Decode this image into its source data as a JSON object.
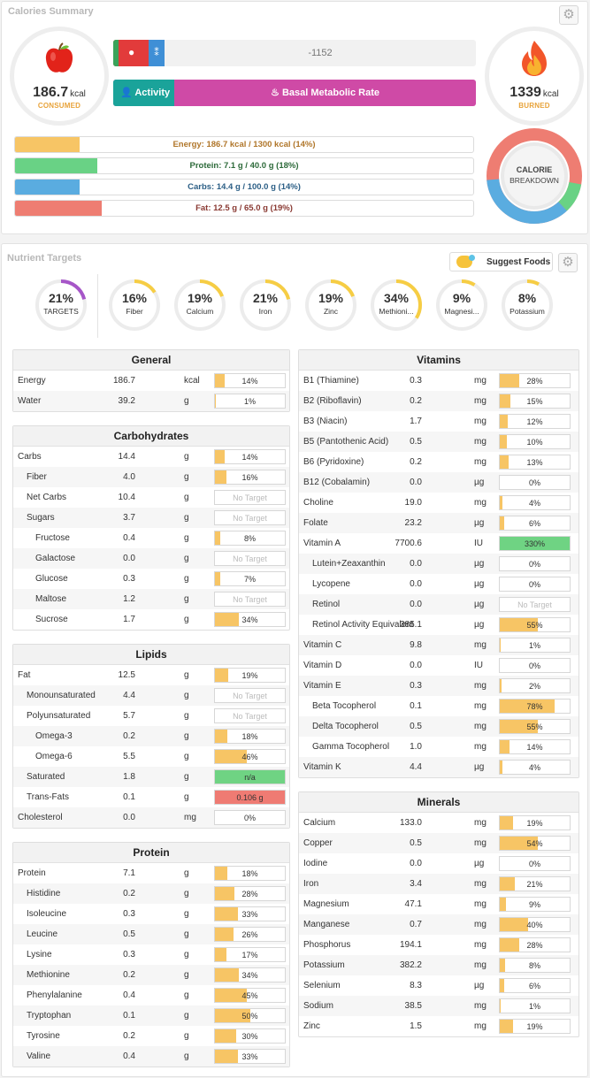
{
  "summary": {
    "title": "Calories Summary",
    "consumed": {
      "value": "186.7",
      "unit": "kcal",
      "caption": "CONSUMED"
    },
    "burned": {
      "value": "1339",
      "unit": "kcal",
      "caption": "BURNED"
    },
    "net": "-1152",
    "activity_label": "Activity",
    "bmr_label": "Basal Metabolic Rate",
    "breakdown": [
      "CALORIE",
      "BREAKDOWN"
    ],
    "macros": [
      {
        "label": "Energy: 186.7 kcal / 1300 kcal (14%)",
        "pct": 14,
        "color": "#f7c565",
        "text": "#b0762a"
      },
      {
        "label": "Protein: 7.1 g / 40.0 g (18%)",
        "pct": 18,
        "color": "#69d285",
        "text": "#2d6a3a"
      },
      {
        "label": "Carbs: 14.4 g / 100.0 g (14%)",
        "pct": 14,
        "color": "#5aace0",
        "text": "#2c5f86"
      },
      {
        "label": "Fat: 12.5 g / 65.0 g (19%)",
        "pct": 19,
        "color": "#ee7d72",
        "text": "#8a3a33"
      }
    ]
  },
  "targets": {
    "title": "Nutrient Targets",
    "suggest_label": "Suggest Foods",
    "rings": [
      {
        "pct": "21%",
        "name": "TARGETS",
        "value": 21,
        "color": "#a656c8"
      },
      {
        "pct": "16%",
        "name": "Fiber",
        "value": 16,
        "color": "#f6cd44"
      },
      {
        "pct": "19%",
        "name": "Calcium",
        "value": 19,
        "color": "#f6cd44"
      },
      {
        "pct": "21%",
        "name": "Iron",
        "value": 21,
        "color": "#f6cd44"
      },
      {
        "pct": "19%",
        "name": "Zinc",
        "value": 19,
        "color": "#f6cd44"
      },
      {
        "pct": "34%",
        "name": "Methioni...",
        "value": 34,
        "color": "#f6cd44"
      },
      {
        "pct": "9%",
        "name": "Magnesi...",
        "value": 9,
        "color": "#f6cd44"
      },
      {
        "pct": "8%",
        "name": "Potassium",
        "value": 8,
        "color": "#f6cd44"
      }
    ]
  },
  "tables": {
    "general": {
      "title": "General",
      "rows": [
        {
          "name": "Energy",
          "value": "186.7",
          "unit": "kcal",
          "pct": 14,
          "label": "14%"
        },
        {
          "name": "Water",
          "value": "39.2",
          "unit": "g",
          "pct": 1,
          "label": "1%"
        }
      ]
    },
    "carbs": {
      "title": "Carbohydrates",
      "rows": [
        {
          "name": "Carbs",
          "value": "14.4",
          "unit": "g",
          "pct": 14,
          "label": "14%",
          "indent": 0
        },
        {
          "name": "Fiber",
          "value": "4.0",
          "unit": "g",
          "pct": 16,
          "label": "16%",
          "indent": 1
        },
        {
          "name": "Net Carbs",
          "value": "10.4",
          "unit": "g",
          "pct": 0,
          "label": "No Target",
          "indent": 1,
          "nt": true
        },
        {
          "name": "Sugars",
          "value": "3.7",
          "unit": "g",
          "pct": 0,
          "label": "No Target",
          "indent": 1,
          "nt": true
        },
        {
          "name": "Fructose",
          "value": "0.4",
          "unit": "g",
          "pct": 8,
          "label": "8%",
          "indent": 2
        },
        {
          "name": "Galactose",
          "value": "0.0",
          "unit": "g",
          "pct": 0,
          "label": "No Target",
          "indent": 2,
          "nt": true
        },
        {
          "name": "Glucose",
          "value": "0.3",
          "unit": "g",
          "pct": 7,
          "label": "7%",
          "indent": 2
        },
        {
          "name": "Maltose",
          "value": "1.2",
          "unit": "g",
          "pct": 0,
          "label": "No Target",
          "indent": 2,
          "nt": true
        },
        {
          "name": "Sucrose",
          "value": "1.7",
          "unit": "g",
          "pct": 34,
          "label": "34%",
          "indent": 2
        }
      ]
    },
    "lipids": {
      "title": "Lipids",
      "rows": [
        {
          "name": "Fat",
          "value": "12.5",
          "unit": "g",
          "pct": 19,
          "label": "19%",
          "indent": 0
        },
        {
          "name": "Monounsaturated",
          "value": "4.4",
          "unit": "g",
          "pct": 0,
          "label": "No Target",
          "indent": 1,
          "nt": true
        },
        {
          "name": "Polyunsaturated",
          "value": "5.7",
          "unit": "g",
          "pct": 0,
          "label": "No Target",
          "indent": 1,
          "nt": true
        },
        {
          "name": "Omega-3",
          "value": "0.2",
          "unit": "g",
          "pct": 18,
          "label": "18%",
          "indent": 2
        },
        {
          "name": "Omega-6",
          "value": "5.5",
          "unit": "g",
          "pct": 46,
          "label": "46%",
          "indent": 2
        },
        {
          "name": "Saturated",
          "value": "1.8",
          "unit": "g",
          "pct": 100,
          "label": "n/a",
          "indent": 1,
          "color": "#6fd383"
        },
        {
          "name": "Trans-Fats",
          "value": "0.1",
          "unit": "g",
          "pct": 100,
          "label": "0.106 g",
          "indent": 1,
          "color": "#ef7b73"
        },
        {
          "name": "Cholesterol",
          "value": "0.0",
          "unit": "mg",
          "pct": 0,
          "label": "0%",
          "indent": 0
        }
      ]
    },
    "protein": {
      "title": "Protein",
      "rows": [
        {
          "name": "Protein",
          "value": "7.1",
          "unit": "g",
          "pct": 18,
          "label": "18%",
          "indent": 0
        },
        {
          "name": "Histidine",
          "value": "0.2",
          "unit": "g",
          "pct": 28,
          "label": "28%",
          "indent": 1
        },
        {
          "name": "Isoleucine",
          "value": "0.3",
          "unit": "g",
          "pct": 33,
          "label": "33%",
          "indent": 1
        },
        {
          "name": "Leucine",
          "value": "0.5",
          "unit": "g",
          "pct": 26,
          "label": "26%",
          "indent": 1
        },
        {
          "name": "Lysine",
          "value": "0.3",
          "unit": "g",
          "pct": 17,
          "label": "17%",
          "indent": 1
        },
        {
          "name": "Methionine",
          "value": "0.2",
          "unit": "g",
          "pct": 34,
          "label": "34%",
          "indent": 1
        },
        {
          "name": "Phenylalanine",
          "value": "0.4",
          "unit": "g",
          "pct": 45,
          "label": "45%",
          "indent": 1
        },
        {
          "name": "Tryptophan",
          "value": "0.1",
          "unit": "g",
          "pct": 50,
          "label": "50%",
          "indent": 1
        },
        {
          "name": "Tyrosine",
          "value": "0.2",
          "unit": "g",
          "pct": 30,
          "label": "30%",
          "indent": 1
        },
        {
          "name": "Valine",
          "value": "0.4",
          "unit": "g",
          "pct": 33,
          "label": "33%",
          "indent": 1
        }
      ]
    },
    "vitamins": {
      "title": "Vitamins",
      "rows": [
        {
          "name": "B1 (Thiamine)",
          "value": "0.3",
          "unit": "mg",
          "pct": 28,
          "label": "28%",
          "indent": 0
        },
        {
          "name": "B2 (Riboflavin)",
          "value": "0.2",
          "unit": "mg",
          "pct": 15,
          "label": "15%",
          "indent": 0
        },
        {
          "name": "B3 (Niacin)",
          "value": "1.7",
          "unit": "mg",
          "pct": 12,
          "label": "12%",
          "indent": 0
        },
        {
          "name": "B5 (Pantothenic Acid)",
          "value": "0.5",
          "unit": "mg",
          "pct": 10,
          "label": "10%",
          "indent": 0
        },
        {
          "name": "B6 (Pyridoxine)",
          "value": "0.2",
          "unit": "mg",
          "pct": 13,
          "label": "13%",
          "indent": 0
        },
        {
          "name": "B12 (Cobalamin)",
          "value": "0.0",
          "unit": "µg",
          "pct": 0,
          "label": "0%",
          "indent": 0
        },
        {
          "name": "Choline",
          "value": "19.0",
          "unit": "mg",
          "pct": 4,
          "label": "4%",
          "indent": 0
        },
        {
          "name": "Folate",
          "value": "23.2",
          "unit": "µg",
          "pct": 6,
          "label": "6%",
          "indent": 0
        },
        {
          "name": "Vitamin A",
          "value": "7700.6",
          "unit": "IU",
          "pct": 100,
          "label": "330%",
          "indent": 0,
          "color": "#6fd383"
        },
        {
          "name": "Lutein+Zeaxanthin",
          "value": "0.0",
          "unit": "µg",
          "pct": 0,
          "label": "0%",
          "indent": 1
        },
        {
          "name": "Lycopene",
          "value": "0.0",
          "unit": "µg",
          "pct": 0,
          "label": "0%",
          "indent": 1
        },
        {
          "name": "Retinol",
          "value": "0.0",
          "unit": "µg",
          "pct": 0,
          "label": "No Target",
          "indent": 1,
          "nt": true
        },
        {
          "name": "Retinol Activity Equivalent",
          "value": "385.1",
          "unit": "µg",
          "pct": 55,
          "label": "55%",
          "indent": 1
        },
        {
          "name": "Vitamin C",
          "value": "9.8",
          "unit": "mg",
          "pct": 1,
          "label": "1%",
          "indent": 0
        },
        {
          "name": "Vitamin D",
          "value": "0.0",
          "unit": "IU",
          "pct": 0,
          "label": "0%",
          "indent": 0
        },
        {
          "name": "Vitamin E",
          "value": "0.3",
          "unit": "mg",
          "pct": 2,
          "label": "2%",
          "indent": 0
        },
        {
          "name": "Beta Tocopherol",
          "value": "0.1",
          "unit": "mg",
          "pct": 78,
          "label": "78%",
          "indent": 1
        },
        {
          "name": "Delta Tocopherol",
          "value": "0.5",
          "unit": "mg",
          "pct": 55,
          "label": "55%",
          "indent": 1
        },
        {
          "name": "Gamma Tocopherol",
          "value": "1.0",
          "unit": "mg",
          "pct": 14,
          "label": "14%",
          "indent": 1
        },
        {
          "name": "Vitamin K",
          "value": "4.4",
          "unit": "µg",
          "pct": 4,
          "label": "4%",
          "indent": 0
        }
      ]
    },
    "minerals": {
      "title": "Minerals",
      "rows": [
        {
          "name": "Calcium",
          "value": "133.0",
          "unit": "mg",
          "pct": 19,
          "label": "19%",
          "indent": 0
        },
        {
          "name": "Copper",
          "value": "0.5",
          "unit": "mg",
          "pct": 54,
          "label": "54%",
          "indent": 0
        },
        {
          "name": "Iodine",
          "value": "0.0",
          "unit": "µg",
          "pct": 0,
          "label": "0%",
          "indent": 0
        },
        {
          "name": "Iron",
          "value": "3.4",
          "unit": "mg",
          "pct": 21,
          "label": "21%",
          "indent": 0
        },
        {
          "name": "Magnesium",
          "value": "47.1",
          "unit": "mg",
          "pct": 9,
          "label": "9%",
          "indent": 0
        },
        {
          "name": "Manganese",
          "value": "0.7",
          "unit": "mg",
          "pct": 40,
          "label": "40%",
          "indent": 0
        },
        {
          "name": "Phosphorus",
          "value": "194.1",
          "unit": "mg",
          "pct": 28,
          "label": "28%",
          "indent": 0
        },
        {
          "name": "Potassium",
          "value": "382.2",
          "unit": "mg",
          "pct": 8,
          "label": "8%",
          "indent": 0
        },
        {
          "name": "Selenium",
          "value": "8.3",
          "unit": "µg",
          "pct": 6,
          "label": "6%",
          "indent": 0
        },
        {
          "name": "Sodium",
          "value": "38.5",
          "unit": "mg",
          "pct": 1,
          "label": "1%",
          "indent": 0
        },
        {
          "name": "Zinc",
          "value": "1.5",
          "unit": "mg",
          "pct": 19,
          "label": "19%",
          "indent": 0
        }
      ]
    }
  }
}
